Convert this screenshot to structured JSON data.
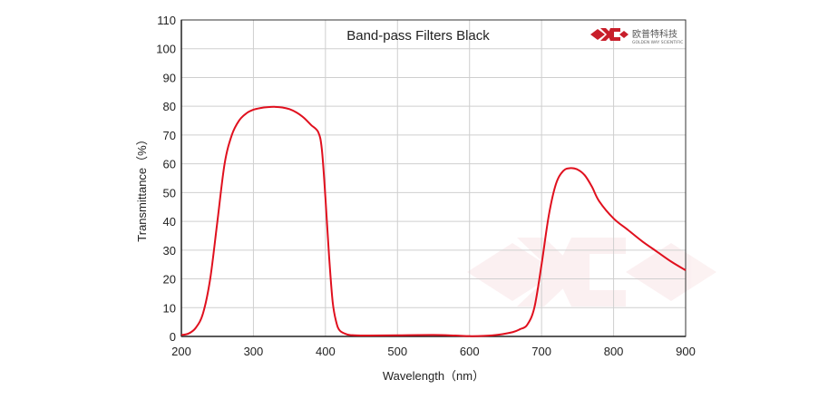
{
  "chart_data": {
    "type": "line",
    "title": "Band-pass  Filters Black",
    "xlabel": "Wavelength（nm）",
    "ylabel": "Transmittance（%）",
    "xlim": [
      200,
      900
    ],
    "ylim": [
      0,
      110
    ],
    "xticks": [
      200,
      300,
      400,
      500,
      600,
      700,
      800,
      900
    ],
    "yticks": [
      0,
      10,
      20,
      30,
      40,
      50,
      60,
      70,
      80,
      90,
      100,
      110
    ],
    "grid": true,
    "legend": "none",
    "series": [
      {
        "color": "#e0101e",
        "x": [
          200,
          210,
          220,
          230,
          240,
          250,
          260,
          270,
          280,
          290,
          300,
          310,
          320,
          330,
          340,
          350,
          360,
          370,
          380,
          390,
          395,
          400,
          405,
          410,
          415,
          420,
          430,
          440,
          460,
          500,
          550,
          580,
          600,
          620,
          640,
          660,
          670,
          680,
          690,
          700,
          710,
          720,
          730,
          740,
          750,
          760,
          770,
          780,
          800,
          820,
          840,
          860,
          880,
          900
        ],
        "y": [
          0.5,
          1,
          3,
          8,
          20,
          40,
          60,
          70,
          75,
          77.5,
          78.8,
          79.4,
          79.7,
          79.8,
          79.6,
          79,
          77.8,
          76,
          73.5,
          71,
          65,
          48,
          28,
          12,
          5,
          2,
          0.7,
          0.4,
          0.3,
          0.4,
          0.5,
          0.3,
          0.1,
          0.2,
          0.6,
          1.5,
          2.5,
          4,
          10,
          25,
          42,
          53,
          57.5,
          58.5,
          58,
          56,
          52,
          47,
          41,
          37,
          33,
          29.5,
          26,
          23
        ]
      }
    ]
  },
  "logo": {
    "cn_text": "欧普特科技",
    "en_text": "GOLDEN WAY SCIENTIFIC"
  }
}
